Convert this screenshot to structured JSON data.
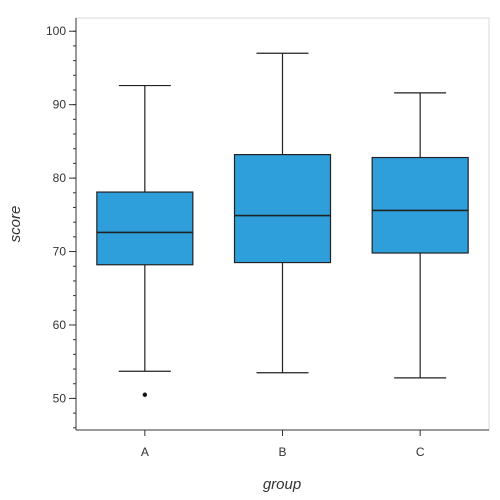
{
  "chart_data": {
    "type": "box",
    "xlabel": "group",
    "ylabel": "score",
    "ylim": [
      45.7,
      101.8
    ],
    "yticks": [
      50,
      60,
      70,
      80,
      90,
      100
    ],
    "minor_tick_step": 2,
    "grid": false,
    "box_color": "#2E9FDB",
    "categories": [
      "A",
      "B",
      "C"
    ],
    "boxes": [
      {
        "category": "A",
        "whisker_low": 53.7,
        "q1": 68.2,
        "median": 72.6,
        "q3": 78.1,
        "whisker_high": 92.6,
        "outliers": [
          50.5
        ]
      },
      {
        "category": "B",
        "whisker_low": 53.5,
        "q1": 68.5,
        "median": 74.9,
        "q3": 83.2,
        "whisker_high": 97.0,
        "outliers": []
      },
      {
        "category": "C",
        "whisker_low": 52.8,
        "q1": 69.8,
        "median": 75.6,
        "q3": 82.8,
        "whisker_high": 91.6,
        "outliers": []
      }
    ]
  }
}
